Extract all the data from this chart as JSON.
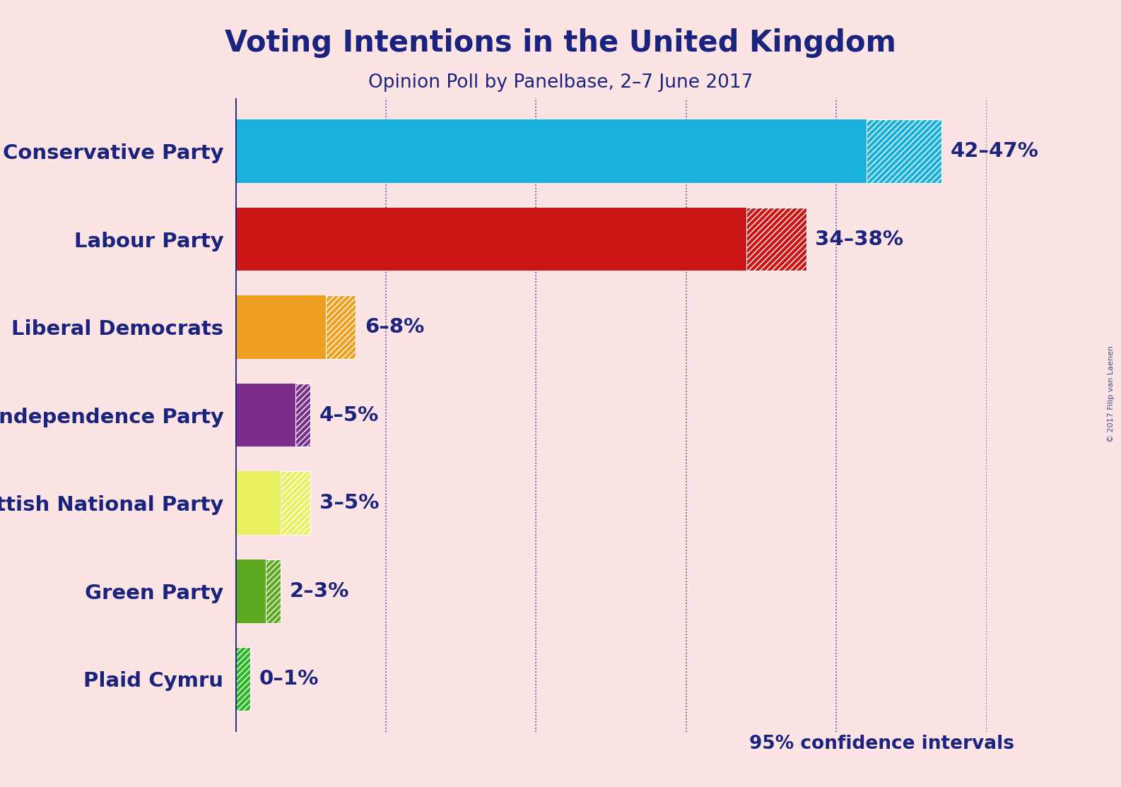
{
  "title": "Voting Intentions in the United Kingdom",
  "subtitle": "Opinion Poll by Panelbase, 2–7 June 2017",
  "watermark": "© 2017 Filip van Laenen",
  "background_color": "#fce4e4",
  "title_color": "#1a237e",
  "subtitle_color": "#1a237e",
  "parties": [
    "Conservative Party",
    "Labour Party",
    "Liberal Democrats",
    "UK Independence Party",
    "Scottish National Party",
    "Green Party",
    "Plaid Cymru"
  ],
  "low_values": [
    42,
    34,
    6,
    4,
    3,
    2,
    0
  ],
  "high_values": [
    47,
    38,
    8,
    5,
    5,
    3,
    1
  ],
  "colors": [
    "#1ab0dd",
    "#cc1616",
    "#f0a020",
    "#7b2d8b",
    "#e8f060",
    "#5daa20",
    "#2db828"
  ],
  "labels": [
    "42–47%",
    "34–38%",
    "6–8%",
    "4–5%",
    "3–5%",
    "2–3%",
    "0–1%"
  ],
  "label_color": "#1a237e",
  "note": "95% confidence intervals",
  "note_color": "#1a237e",
  "xlim": [
    0,
    50
  ],
  "grid_color": "#1a237e",
  "axis_line_color": "#1a237e"
}
